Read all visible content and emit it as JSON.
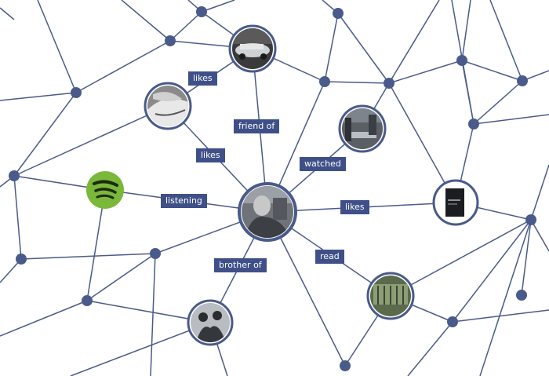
{
  "edge_labels": {
    "likes_top": "likes",
    "friend_of": "friend of",
    "likes_left": "likes",
    "watched": "watched",
    "listening": "listening",
    "likes_right": "likes",
    "read": "read",
    "brother_of": "brother of"
  },
  "nodes": {
    "center": "person-photo",
    "car": "car-photo",
    "hands": "hands-photo",
    "movie": "movie-poster",
    "music_app": "spotify-logo",
    "book": "book-cover",
    "reading": "reading-photo",
    "brother": "brother-photo"
  },
  "colors": {
    "edge": "#4a5a8a",
    "label_bg": "#3f5089",
    "music_green": "#7ab83a"
  }
}
